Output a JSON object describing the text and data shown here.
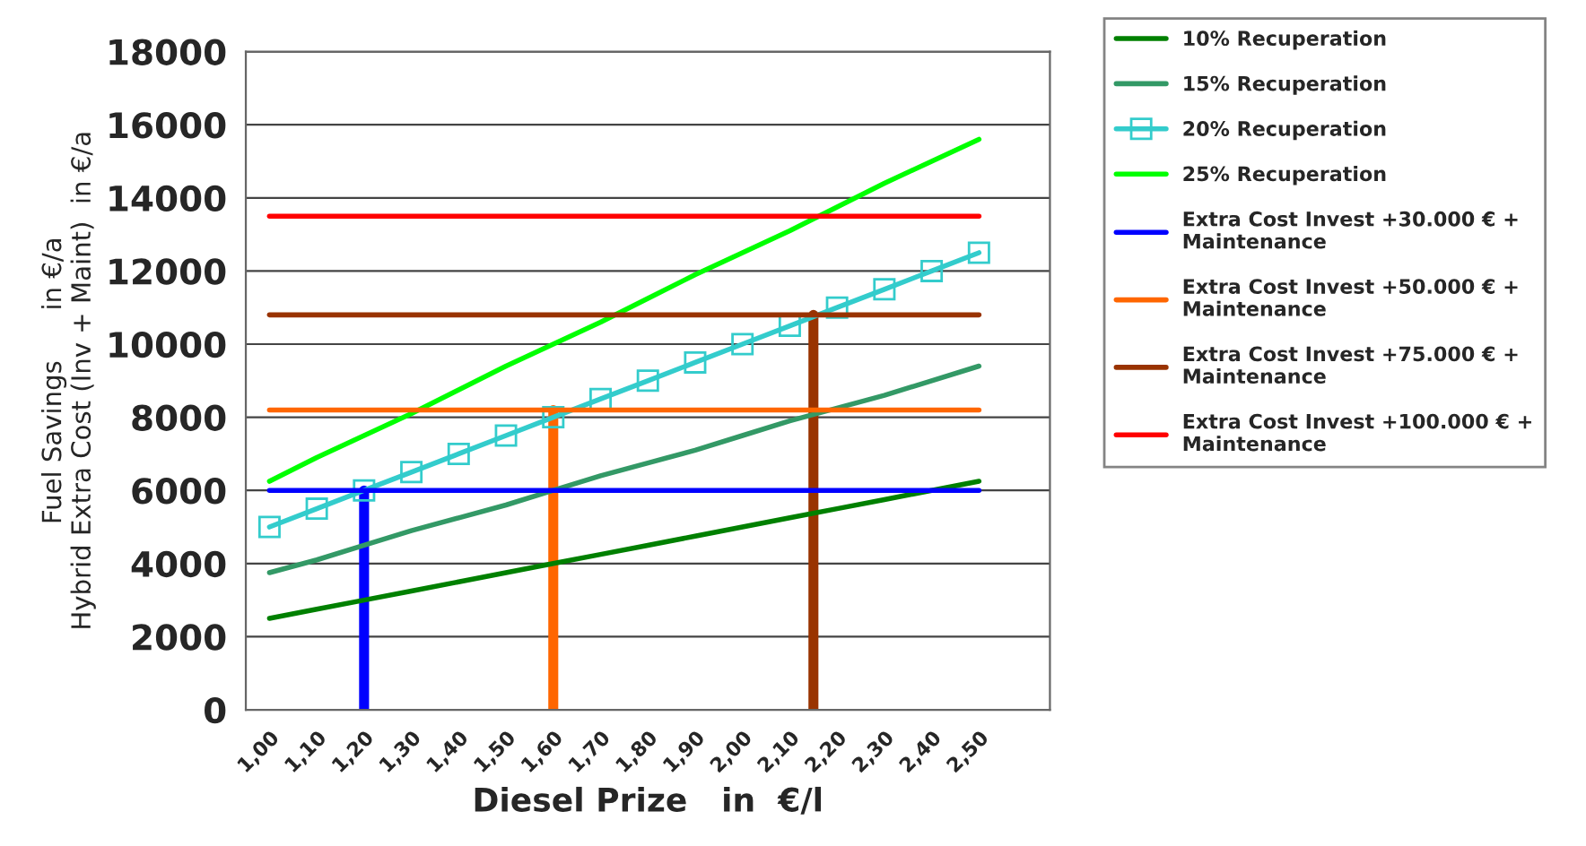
{
  "chart_data": {
    "type": "line",
    "xlabel": "Diesel Prize   in  €/l",
    "ylabel": "Fuel Savings      in €/a\nHybrid Extra Cost (Inv + Maint)  in €/a",
    "x": [
      1.0,
      1.1,
      1.2,
      1.3,
      1.4,
      1.5,
      1.6,
      1.7,
      1.8,
      1.9,
      2.0,
      2.1,
      2.2,
      2.3,
      2.4,
      2.5
    ],
    "xlim": [
      0.95,
      2.65
    ],
    "xticks": [
      {
        "value": 1.0,
        "label": "1,00"
      },
      {
        "value": 1.1,
        "label": "1,10"
      },
      {
        "value": 1.2,
        "label": "1,20"
      },
      {
        "value": 1.3,
        "label": "1,30"
      },
      {
        "value": 1.4,
        "label": "1,40"
      },
      {
        "value": 1.5,
        "label": "1,50"
      },
      {
        "value": 1.6,
        "label": "1,60"
      },
      {
        "value": 1.7,
        "label": "1,70"
      },
      {
        "value": 1.8,
        "label": "1,80"
      },
      {
        "value": 1.9,
        "label": "1,90"
      },
      {
        "value": 2.0,
        "label": "2,00"
      },
      {
        "value": 2.1,
        "label": "2,10"
      },
      {
        "value": 2.2,
        "label": "2,20"
      },
      {
        "value": 2.3,
        "label": "2,30"
      },
      {
        "value": 2.4,
        "label": "2,40"
      },
      {
        "value": 2.5,
        "label": "2,50"
      }
    ],
    "ylim": [
      0,
      18000
    ],
    "yticks": [
      0,
      2000,
      4000,
      6000,
      8000,
      10000,
      12000,
      14000,
      16000,
      18000
    ],
    "grid": "y",
    "legend": "right",
    "series": [
      {
        "name": "10% Recuperation",
        "color": "#008000",
        "values": [
          2500,
          2750,
          3000,
          3250,
          3500,
          3750,
          4000,
          4250,
          4500,
          4750,
          5000,
          5250,
          5500,
          5750,
          6000,
          6250
        ]
      },
      {
        "name": "15% Recuperation",
        "color": "#339966",
        "values": [
          3750,
          4100,
          4500,
          4900,
          5250,
          5600,
          6000,
          6400,
          6750,
          7100,
          7500,
          7900,
          8250,
          8600,
          9000,
          9400
        ]
      },
      {
        "name": "20% Recuperation",
        "color": "#33cccc",
        "marker": "square",
        "values": [
          5000,
          5500,
          6000,
          6500,
          7000,
          7500,
          8000,
          8500,
          9000,
          9500,
          10000,
          10500,
          11000,
          11500,
          12000,
          12500
        ]
      },
      {
        "name": "25% Recuperation",
        "color": "#00ff00",
        "values": [
          6250,
          6900,
          7500,
          8100,
          8750,
          9400,
          10000,
          10600,
          11250,
          11900,
          12500,
          13100,
          13750,
          14400,
          15000,
          15600
        ]
      },
      {
        "name": "Extra Cost Invest +30.000 € + Maintenance",
        "color": "#0000ff",
        "x": [
          1.0,
          2.5
        ],
        "values": [
          6000,
          6000
        ]
      },
      {
        "name": "Extra Cost Invest +50.000 € + Maintenance",
        "color": "#ff6600",
        "x": [
          1.0,
          2.5
        ],
        "values": [
          8200,
          8200
        ]
      },
      {
        "name": "Extra Cost Invest +75.000 € + Maintenance",
        "color": "#993300",
        "x": [
          1.0,
          2.5
        ],
        "values": [
          10800,
          10800
        ]
      },
      {
        "name": "Extra Cost Invest +100.000 € + Maintenance",
        "color": "#ff0000",
        "x": [
          1.0,
          2.5
        ],
        "values": [
          13500,
          13500
        ]
      },
      {
        "color": "#0000ff",
        "x": [
          1.2,
          1.2
        ],
        "values": [
          0,
          6000
        ]
      },
      {
        "color": "#ff6600",
        "x": [
          1.6,
          1.6
        ],
        "values": [
          0,
          8200
        ]
      },
      {
        "color": "#993300",
        "x": [
          2.15,
          2.15
        ],
        "values": [
          0,
          10800
        ]
      }
    ]
  }
}
